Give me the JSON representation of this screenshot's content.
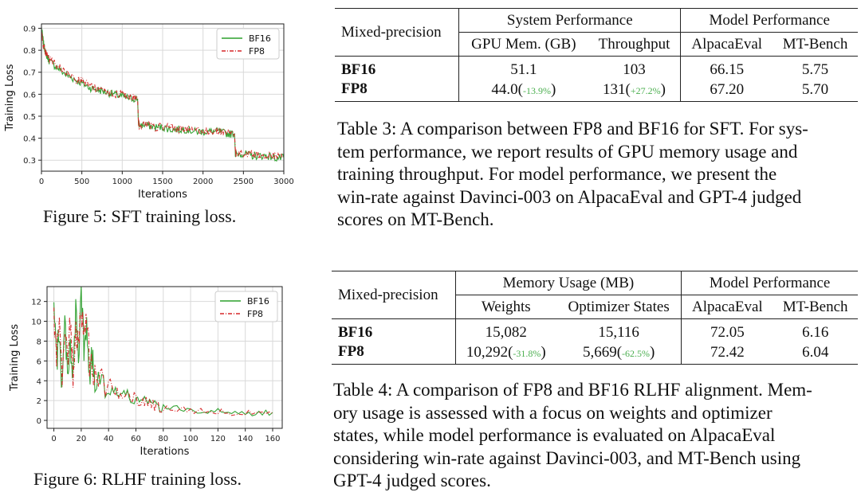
{
  "figure5": {
    "caption": "Figure 5: SFT training loss.",
    "chart_data": {
      "type": "line",
      "xlabel": "Iterations",
      "ylabel": "Training Loss",
      "xlim": [
        0,
        3000
      ],
      "ylim": [
        0.25,
        0.92
      ],
      "xticks": [
        "0",
        "500",
        "1000",
        "1500",
        "2000",
        "2500",
        "3000"
      ],
      "yticks": [
        "0.3",
        "0.4",
        "0.5",
        "0.6",
        "0.7",
        "0.8",
        "0.9"
      ],
      "grid": true,
      "legend_position": "top-right",
      "series": [
        {
          "name": "BF16",
          "color": "#2ca02c",
          "style": "solid",
          "x": [
            0,
            30,
            60,
            100,
            200,
            300,
            400,
            500,
            600,
            700,
            800,
            900,
            1000,
            1100,
            1190,
            1200,
            1210,
            1300,
            1400,
            1500,
            1600,
            1700,
            1800,
            1900,
            2000,
            2100,
            2200,
            2300,
            2390,
            2400,
            2410,
            2500,
            2600,
            2700,
            2800,
            2900,
            3000
          ],
          "y": [
            0.9,
            0.82,
            0.78,
            0.75,
            0.72,
            0.69,
            0.67,
            0.65,
            0.63,
            0.62,
            0.61,
            0.6,
            0.59,
            0.58,
            0.58,
            0.47,
            0.46,
            0.46,
            0.45,
            0.45,
            0.44,
            0.44,
            0.44,
            0.43,
            0.43,
            0.43,
            0.43,
            0.42,
            0.42,
            0.33,
            0.33,
            0.33,
            0.32,
            0.32,
            0.32,
            0.31,
            0.31
          ]
        },
        {
          "name": "FP8",
          "color": "#d62728",
          "style": "dashdot",
          "x": [
            0,
            30,
            60,
            100,
            200,
            300,
            400,
            500,
            600,
            700,
            800,
            900,
            1000,
            1100,
            1190,
            1200,
            1210,
            1300,
            1400,
            1500,
            1600,
            1700,
            1800,
            1900,
            2000,
            2100,
            2200,
            2300,
            2390,
            2400,
            2410,
            2500,
            2600,
            2700,
            2800,
            2900,
            3000
          ],
          "y": [
            0.88,
            0.81,
            0.78,
            0.76,
            0.73,
            0.7,
            0.67,
            0.66,
            0.64,
            0.62,
            0.61,
            0.6,
            0.6,
            0.59,
            0.58,
            0.48,
            0.46,
            0.46,
            0.45,
            0.45,
            0.45,
            0.44,
            0.44,
            0.44,
            0.43,
            0.43,
            0.43,
            0.43,
            0.42,
            0.34,
            0.33,
            0.33,
            0.33,
            0.32,
            0.32,
            0.32,
            0.31
          ]
        }
      ]
    }
  },
  "figure6": {
    "caption": "Figure 6: RLHF training loss.",
    "chart_data": {
      "type": "line",
      "xlabel": "Iterations",
      "ylabel": "Training Loss",
      "xlim": [
        -5,
        167
      ],
      "ylim": [
        -0.8,
        13.5
      ],
      "xticks": [
        "0",
        "20",
        "40",
        "60",
        "80",
        "100",
        "120",
        "140",
        "160"
      ],
      "yticks": [
        "0",
        "2",
        "4",
        "6",
        "8",
        "10",
        "12"
      ],
      "grid": true,
      "legend_position": "top-right",
      "series": [
        {
          "name": "BF16",
          "color": "#2ca02c",
          "style": "solid",
          "x": [
            0,
            2,
            4,
            6,
            8,
            10,
            12,
            14,
            16,
            18,
            20,
            22,
            24,
            26,
            28,
            30,
            35,
            40,
            45,
            50,
            55,
            60,
            65,
            70,
            75,
            80,
            90,
            100,
            110,
            120,
            130,
            140,
            150,
            160
          ],
          "y": [
            11,
            6,
            9,
            3,
            10,
            5,
            8,
            4,
            11,
            6,
            13,
            7,
            9,
            5,
            6,
            4,
            5,
            3,
            3,
            2.6,
            2.5,
            2,
            2,
            1.6,
            1.5,
            1.3,
            1.2,
            1,
            1,
            0.9,
            0.8,
            0.8,
            0.7,
            0.8
          ]
        },
        {
          "name": "FP8",
          "color": "#d62728",
          "style": "dashdot",
          "x": [
            0,
            2,
            4,
            6,
            8,
            10,
            12,
            14,
            16,
            18,
            20,
            22,
            24,
            26,
            28,
            30,
            35,
            40,
            45,
            50,
            55,
            60,
            65,
            70,
            75,
            80,
            90,
            100,
            110,
            120,
            130,
            140,
            150,
            160
          ],
          "y": [
            11,
            7,
            10,
            5,
            9,
            6,
            10,
            5,
            9,
            7,
            12,
            8,
            10,
            6,
            5,
            5,
            4,
            4,
            3,
            2.5,
            2.4,
            2.2,
            1.8,
            1.7,
            1.4,
            1.2,
            1.1,
            1,
            0.9,
            0.9,
            0.8,
            0.7,
            0.8,
            0.7
          ]
        }
      ]
    }
  },
  "table3": {
    "head_left": "Mixed-precision",
    "group1": "System Performance",
    "group2": "Model Performance",
    "cols": [
      "GPU Mem. (GB)",
      "Throughput",
      "AlpacaEval",
      "MT-Bench"
    ],
    "rows": [
      {
        "label": "BF16",
        "c1": "51.1",
        "c1d": "",
        "c2": "103",
        "c2d": "",
        "c3": "66.15",
        "c4": "5.75"
      },
      {
        "label": "FP8",
        "c1": "44.0",
        "c1d": "-13.9%",
        "c2": "131",
        "c2d": "+27.2%",
        "c3": "67.20",
        "c4": "5.70"
      }
    ],
    "caption_lines": [
      "Table 3: A comparison between FP8 and BF16 for SFT. For sys-",
      "tem performance, we report results of GPU memory usage and",
      "training throughput.  For model performance, we present the",
      "win-rate against Davinci-003 on AlpacaEval and GPT-4 judged",
      "scores on MT-Bench."
    ]
  },
  "table4": {
    "head_left": "Mixed-precision",
    "group1": "Memory Usage (MB)",
    "group2": "Model Performance",
    "cols": [
      "Weights",
      "Optimizer States",
      "AlpacaEval",
      "MT-Bench"
    ],
    "rows": [
      {
        "label": "BF16",
        "c1": "15,082",
        "c1d": "",
        "c2": "15,116",
        "c2d": "",
        "c3": "72.05",
        "c4": "6.16"
      },
      {
        "label": "FP8",
        "c1": "10,292",
        "c1d": "-31.8%",
        "c2": "5,669",
        "c2d": "-62.5%",
        "c3": "72.42",
        "c4": "6.04"
      }
    ],
    "caption_lines": [
      "Table 4: A comparison of FP8 and BF16 RLHF alignment. Mem-",
      "ory usage is assessed with a focus on weights and optimizer",
      "states, while model performance is evaluated on AlpacaEval",
      "considering win-rate against Davinci-003, and MT-Bench using",
      "GPT-4 judged scores."
    ]
  },
  "colors": {
    "bf16": "#2ca02c",
    "fp8": "#d62728",
    "delta": "#4caf50",
    "grid": "#d9d9d9"
  }
}
